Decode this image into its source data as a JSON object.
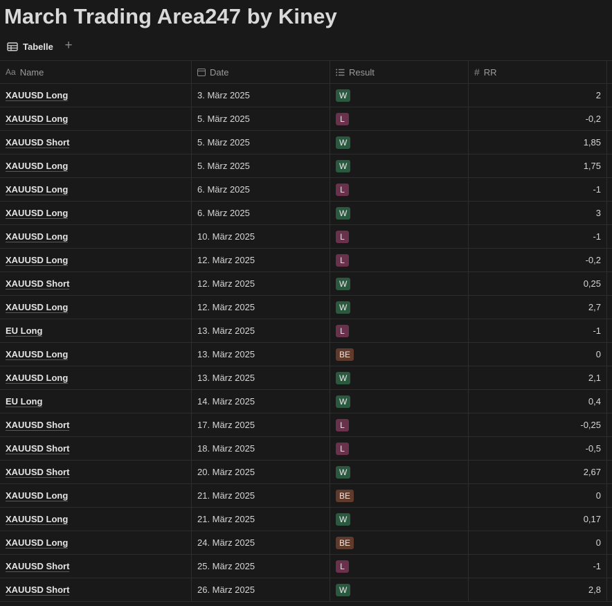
{
  "page": {
    "title": "March Trading Area247 by Kiney"
  },
  "views": {
    "active_tab": "Tabelle",
    "add_symbol": "+"
  },
  "columns": {
    "name": {
      "icon": "Aa",
      "label": "Name"
    },
    "date": {
      "icon": "calendar-icon",
      "label": "Date"
    },
    "result": {
      "icon": "list-icon",
      "label": "Result"
    },
    "rr": {
      "icon": "#",
      "label": "RR"
    }
  },
  "colors": {
    "W": "#2b5940",
    "L": "#69314c",
    "BE": "#603b2c",
    "background": "#191919"
  },
  "rows": [
    {
      "name": "XAUUSD Long",
      "date": "3. März 2025",
      "result": "W",
      "rr": "2"
    },
    {
      "name": "XAUUSD Long",
      "date": "5. März 2025",
      "result": "L",
      "rr": "-0,2"
    },
    {
      "name": "XAUUSD Short",
      "date": "5. März 2025",
      "result": "W",
      "rr": "1,85"
    },
    {
      "name": "XAUUSD Long",
      "date": "5. März 2025",
      "result": "W",
      "rr": "1,75"
    },
    {
      "name": "XAUUSD Long",
      "date": "6. März 2025",
      "result": "L",
      "rr": "-1"
    },
    {
      "name": "XAUUSD Long",
      "date": "6. März 2025",
      "result": "W",
      "rr": "3"
    },
    {
      "name": "XAUUSD Long",
      "date": "10. März 2025",
      "result": "L",
      "rr": "-1"
    },
    {
      "name": "XAUUSD Long",
      "date": "12. März 2025",
      "result": "L",
      "rr": "-0,2"
    },
    {
      "name": "XAUUSD Short",
      "date": "12. März 2025",
      "result": "W",
      "rr": "0,25"
    },
    {
      "name": "XAUUSD Long",
      "date": "12. März 2025",
      "result": "W",
      "rr": "2,7"
    },
    {
      "name": "EU Long",
      "date": "13. März 2025",
      "result": "L",
      "rr": "-1"
    },
    {
      "name": "XAUUSD Long",
      "date": "13. März 2025",
      "result": "BE",
      "rr": "0"
    },
    {
      "name": "XAUUSD Long",
      "date": "13. März 2025",
      "result": "W",
      "rr": "2,1"
    },
    {
      "name": "EU Long",
      "date": "14. März 2025",
      "result": "W",
      "rr": "0,4"
    },
    {
      "name": "XAUUSD Short",
      "date": "17. März 2025",
      "result": "L",
      "rr": "-0,25"
    },
    {
      "name": "XAUUSD Short",
      "date": "18. März 2025",
      "result": "L",
      "rr": "-0,5"
    },
    {
      "name": "XAUUSD Short",
      "date": "20. März 2025",
      "result": "W",
      "rr": "2,67"
    },
    {
      "name": "XAUUSD Long",
      "date": "21. März 2025",
      "result": "BE",
      "rr": "0"
    },
    {
      "name": "XAUUSD Long",
      "date": "21. März 2025",
      "result": "W",
      "rr": "0,17"
    },
    {
      "name": "XAUUSD Long",
      "date": "24. März 2025",
      "result": "BE",
      "rr": "0"
    },
    {
      "name": "XAUUSD Short",
      "date": "25. März 2025",
      "result": "L",
      "rr": "-1"
    },
    {
      "name": "XAUUSD Short",
      "date": "26. März 2025",
      "result": "W",
      "rr": "2,8"
    }
  ]
}
